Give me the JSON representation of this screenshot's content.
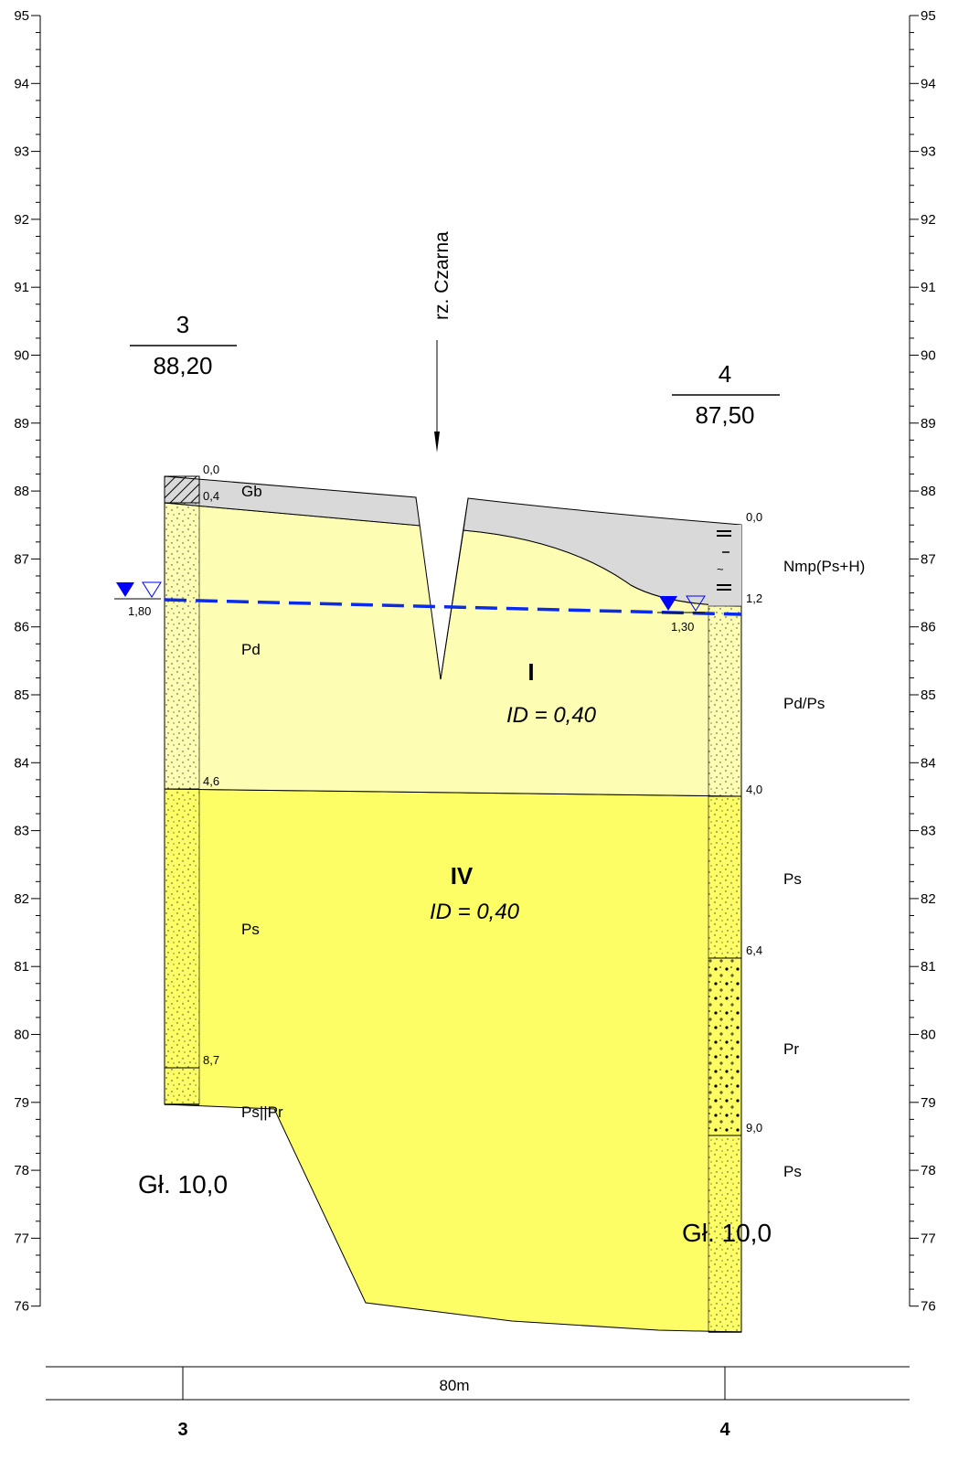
{
  "axis": {
    "left_ticks": [
      "95",
      "94",
      "93",
      "92",
      "91",
      "90",
      "89",
      "88",
      "87",
      "86",
      "85",
      "84",
      "83",
      "82",
      "81",
      "80",
      "79",
      "78",
      "77",
      "76"
    ],
    "right_ticks": [
      "95",
      "94",
      "93",
      "92",
      "91",
      "90",
      "89",
      "88",
      "87",
      "86",
      "85",
      "84",
      "83",
      "82",
      "81",
      "80",
      "79",
      "78",
      "77",
      "76"
    ]
  },
  "boreholes": {
    "b3": {
      "number": "3",
      "elevation": "88,20",
      "depth_label": "Gł. 10,0",
      "depth_marks": [
        "0,0",
        "0,4",
        "4,6",
        "8,7"
      ],
      "water_depth": "1,80"
    },
    "b4": {
      "number": "4",
      "elevation": "87,50",
      "depth_label": "Gł. 10,0",
      "depth_marks": [
        "0,0",
        "1,2",
        "4,0",
        "6,4",
        "9,0"
      ],
      "water_depth": "1,30"
    }
  },
  "river": {
    "label": "rz. Czarna"
  },
  "layers": {
    "gb": "Gb",
    "pd": "Pd",
    "ps_left": "Ps",
    "pspr": "Ps||Pr",
    "nmp": "Nmp(Ps+H)",
    "pdps": "Pd/Ps",
    "ps_right": "Ps",
    "pr": "Pr",
    "ps_right_bottom": "Ps"
  },
  "zones": {
    "I": {
      "name": "I",
      "id": "ID = 0,40"
    },
    "IV": {
      "name": "IV",
      "id": "ID = 0,40"
    }
  },
  "distance": {
    "label": "80m",
    "left_number": "3",
    "right_number": "4"
  },
  "colors": {
    "fill_top": "#d9d9d9",
    "layer_I": "#fdfdb3",
    "layer_IV": "#fdfd66",
    "water_line": "#0a2bea",
    "water_symbol": "#0000ff"
  }
}
